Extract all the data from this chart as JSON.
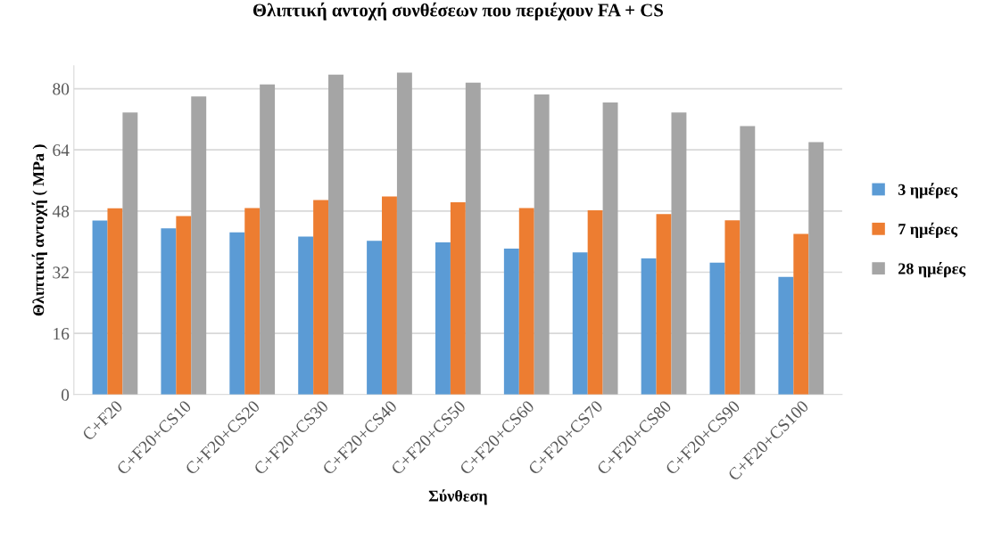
{
  "chart_data": {
    "type": "bar",
    "title": "Θλιπτική αντοχή συνθέσεων που περιέχουν FA + CS",
    "xlabel": "Σύνθεση",
    "ylabel": "Θλιπτική αντοχή ( MPa )",
    "categories": [
      "C+F20",
      "C+F20+CS10",
      "C+F20+CS20",
      "C+F20+CS30",
      "C+F20+CS40",
      "C+F20+CS50",
      "C+F20+CS60",
      "C+F20+CS70",
      "C+F20+CS80",
      "C+F20+CS90",
      "C+F20+CS100"
    ],
    "series": [
      {
        "name": "3 ημέρες",
        "color": "#5b9bd5",
        "values": [
          45.5,
          43.5,
          42.4,
          41.3,
          40.2,
          39.8,
          38.2,
          37.2,
          35.6,
          34.5,
          30.8
        ]
      },
      {
        "name": "7 ημέρες",
        "color": "#ed7d31",
        "values": [
          48.7,
          46.7,
          48.8,
          50.9,
          51.8,
          50.3,
          48.8,
          48.2,
          47.2,
          45.6,
          42.0
        ]
      },
      {
        "name": "28 ημέρες",
        "color": "#a5a5a5",
        "values": [
          73.8,
          78.0,
          81.1,
          83.7,
          84.2,
          81.6,
          78.5,
          76.4,
          73.8,
          70.2,
          66.0
        ]
      }
    ],
    "ylim": [
      0,
      86
    ],
    "yticks": [
      0,
      16,
      32,
      48,
      64,
      80
    ],
    "grid": "y",
    "legend": "right"
  }
}
